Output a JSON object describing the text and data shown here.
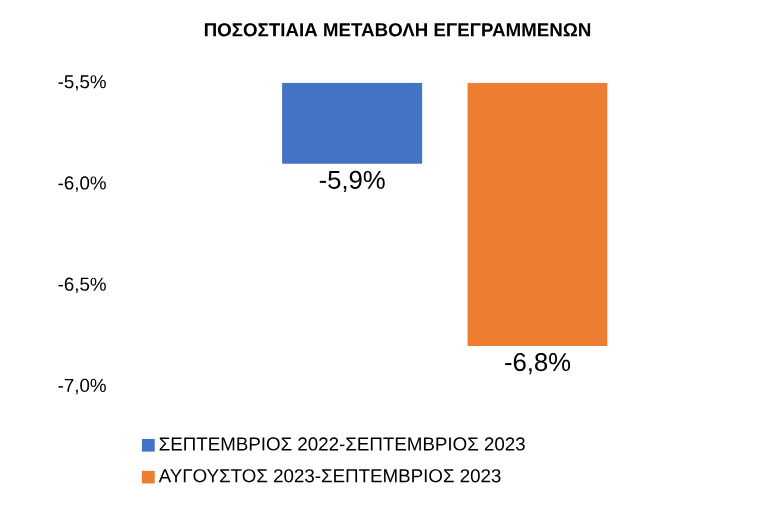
{
  "chart_data": {
    "type": "bar",
    "title": "ΠΟΣΟΣΤΙΑΙΑ ΜΕΤΑΒΟΛΗ ΕΓΕΓΡΑΜΜΕΝΩΝ",
    "categories": [
      null
    ],
    "series": [
      {
        "name": "ΣΕΠΤΕΜΒΡΙΟΣ 2022-ΣΕΠΤΕΜΒΡΙΟΣ 2023",
        "color": "#4472c4",
        "values": [
          -5.9
        ],
        "value_labels": [
          "-5,9%"
        ]
      },
      {
        "name": "ΑΥΓΟΥΣΤΟΣ 2023-ΣΕΠΤΕΜΒΡΙΟΣ 2023",
        "color": "#ed7d31",
        "values": [
          -6.8
        ],
        "value_labels": [
          "-6,8%"
        ]
      }
    ],
    "ylim": [
      -7.0,
      -5.5
    ],
    "yticks": [
      {
        "value": -7.0,
        "label": "-7,0%"
      },
      {
        "value": -6.5,
        "label": "-6,5%"
      },
      {
        "value": -6.0,
        "label": "-6,0%"
      },
      {
        "value": -5.5,
        "label": "-5,5%"
      }
    ],
    "legend": "bottom"
  }
}
